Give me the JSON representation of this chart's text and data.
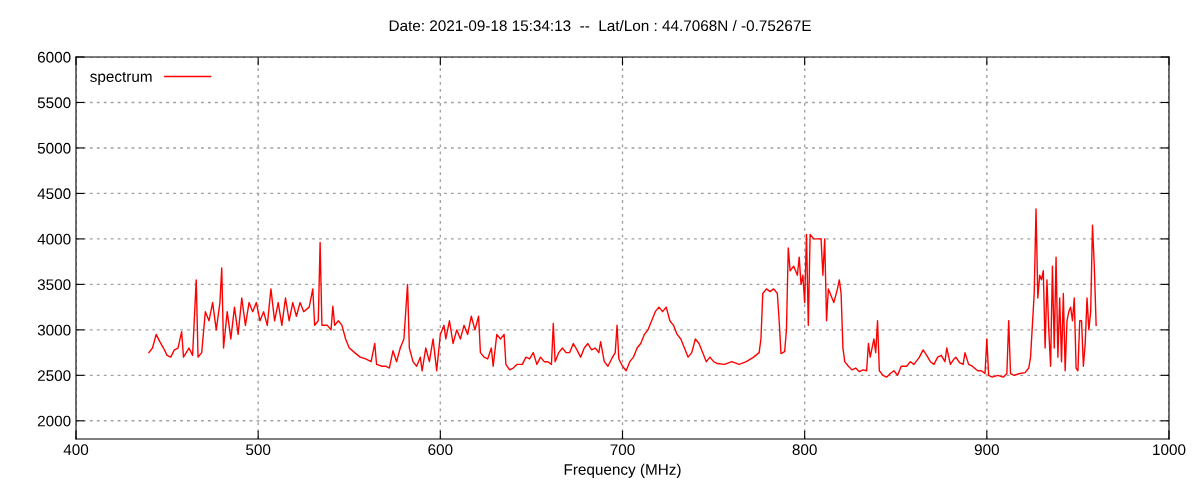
{
  "chart_data": {
    "type": "line",
    "title": "Date: 2021-09-18 15:34:13  --  Lat/Lon : 44.7068N / -0.75267E",
    "xlabel": "Frequency (MHz)",
    "xlim": [
      400,
      1000
    ],
    "xticks": [
      400,
      500,
      600,
      700,
      800,
      900,
      1000
    ],
    "ylim": [
      1800,
      6000
    ],
    "yticks": [
      2000,
      2500,
      3000,
      3500,
      4000,
      4500,
      5000,
      5500,
      6000
    ],
    "grid": true,
    "legend": "top left",
    "line_style": "solid",
    "marker": "none",
    "series": [
      {
        "name": "spectrum",
        "color": "#ff0000",
        "x": [
          440,
          442,
          444,
          446,
          448,
          450,
          452,
          454,
          456,
          458,
          459,
          462,
          464,
          466,
          467,
          469,
          471,
          473,
          475,
          477,
          479,
          480,
          481,
          483,
          485,
          487,
          489,
          491,
          493,
          495,
          497,
          499,
          501,
          503,
          505,
          507,
          509,
          511,
          513,
          515,
          517,
          519,
          521,
          523,
          525,
          528,
          530,
          531,
          533,
          534,
          535,
          538,
          540,
          541,
          542,
          544,
          546,
          548,
          550,
          553,
          556,
          559,
          562,
          564,
          565,
          568,
          570,
          572,
          574,
          576,
          578,
          580,
          582,
          583,
          585,
          587,
          589,
          590,
          592,
          594,
          596,
          598,
          600,
          602,
          603,
          605,
          607,
          609,
          611,
          613,
          615,
          617,
          619,
          621,
          622,
          624,
          626,
          628,
          629,
          631,
          633,
          635,
          636,
          638,
          640,
          642,
          645,
          647,
          649,
          651,
          653,
          655,
          657,
          659,
          661,
          662,
          663,
          665,
          667,
          669,
          671,
          673,
          675,
          677,
          679,
          681,
          683,
          685,
          687,
          688,
          690,
          692,
          694,
          696,
          697,
          698,
          700,
          702,
          704,
          706,
          708,
          710,
          712,
          714,
          716,
          718,
          720,
          722,
          724,
          726,
          728,
          730,
          732,
          734,
          736,
          738,
          740,
          742,
          744,
          746,
          748,
          750,
          752,
          756,
          760,
          764,
          768,
          772,
          775,
          776,
          777,
          779,
          781,
          783,
          785,
          786,
          787,
          789,
          790,
          791,
          792,
          794,
          796,
          797,
          798,
          799,
          800,
          801,
          802,
          803,
          805,
          807,
          809,
          810,
          811,
          812,
          813,
          815,
          816,
          818,
          819,
          820,
          821,
          822,
          824,
          826,
          828,
          830,
          832,
          834,
          835,
          836,
          838,
          839,
          840,
          841,
          843,
          845,
          847,
          849,
          851,
          853,
          856,
          858,
          860,
          863,
          865,
          867,
          869,
          871,
          873,
          875,
          877,
          878,
          880,
          882,
          883,
          885,
          887,
          888,
          890,
          892,
          895,
          897,
          899,
          900,
          901,
          903,
          906,
          909,
          911,
          912,
          913,
          915,
          918,
          921,
          923,
          924,
          925,
          926,
          927,
          928,
          929,
          930,
          931,
          932,
          933,
          934,
          935,
          936,
          937,
          938,
          939,
          940,
          941,
          942,
          943,
          944,
          945,
          946,
          947,
          948,
          949,
          950,
          951,
          952,
          953,
          954,
          955,
          956,
          957,
          958,
          959,
          960
        ],
        "values": [
          2750,
          2800,
          2950,
          2870,
          2800,
          2720,
          2700,
          2780,
          2800,
          2980,
          2700,
          2800,
          2720,
          3550,
          2700,
          2750,
          3200,
          3100,
          3300,
          3000,
          3300,
          3680,
          2800,
          3200,
          2900,
          3250,
          2950,
          3350,
          3050,
          3300,
          3200,
          3300,
          3100,
          3200,
          3050,
          3450,
          3100,
          3300,
          3050,
          3350,
          3100,
          3300,
          3150,
          3300,
          3200,
          3250,
          3450,
          3050,
          3100,
          3960,
          3050,
          3050,
          3000,
          3260,
          3050,
          3100,
          3050,
          2900,
          2800,
          2750,
          2700,
          2680,
          2650,
          2850,
          2620,
          2600,
          2600,
          2580,
          2770,
          2650,
          2800,
          2900,
          3500,
          2800,
          2650,
          2600,
          2700,
          2550,
          2800,
          2650,
          2900,
          2550,
          2950,
          3050,
          2900,
          3100,
          2850,
          3000,
          2900,
          3050,
          2950,
          3150,
          3000,
          3150,
          2750,
          2700,
          2680,
          2800,
          2600,
          2950,
          2900,
          2950,
          2620,
          2560,
          2580,
          2620,
          2620,
          2700,
          2680,
          2750,
          2620,
          2700,
          2650,
          2650,
          2620,
          3070,
          2650,
          2750,
          2800,
          2750,
          2750,
          2850,
          2780,
          2700,
          2800,
          2850,
          2780,
          2800,
          2750,
          2870,
          2650,
          2600,
          2680,
          2750,
          3050,
          2680,
          2600,
          2550,
          2650,
          2700,
          2800,
          2850,
          2950,
          3000,
          3100,
          3200,
          3250,
          3200,
          3250,
          3100,
          3050,
          2950,
          2900,
          2800,
          2700,
          2750,
          2900,
          2850,
          2750,
          2650,
          2700,
          2650,
          2630,
          2620,
          2650,
          2620,
          2650,
          2700,
          2750,
          2900,
          3400,
          3450,
          3420,
          3450,
          3400,
          3100,
          2740,
          2760,
          3000,
          3900,
          3650,
          3700,
          3600,
          3800,
          3500,
          3600,
          3300,
          4050,
          3050,
          4050,
          4000,
          4000,
          4000,
          3600,
          4000,
          3100,
          3450,
          3350,
          3300,
          3450,
          3550,
          3400,
          2800,
          2650,
          2600,
          2560,
          2580,
          2540,
          2560,
          2550,
          2850,
          2700,
          2900,
          2750,
          3100,
          2550,
          2500,
          2480,
          2520,
          2550,
          2500,
          2600,
          2600,
          2650,
          2620,
          2700,
          2780,
          2720,
          2650,
          2620,
          2700,
          2720,
          2650,
          2800,
          2620,
          2680,
          2700,
          2640,
          2620,
          2750,
          2620,
          2600,
          2550,
          2550,
          2520,
          2900,
          2500,
          2480,
          2500,
          2480,
          2520,
          3100,
          2520,
          2500,
          2520,
          2530,
          2580,
          2700,
          3050,
          3400,
          4330,
          3350,
          3600,
          3550,
          3650,
          2800,
          3550,
          3000,
          2600,
          3700,
          2800,
          3800,
          2700,
          3350,
          2650,
          3400,
          2550,
          3100,
          3200,
          3250,
          3100,
          3350,
          2580,
          2550,
          3100,
          3100,
          2600,
          2850,
          3350,
          3000,
          3200,
          4150,
          3700,
          3050
        ]
      }
    ]
  }
}
